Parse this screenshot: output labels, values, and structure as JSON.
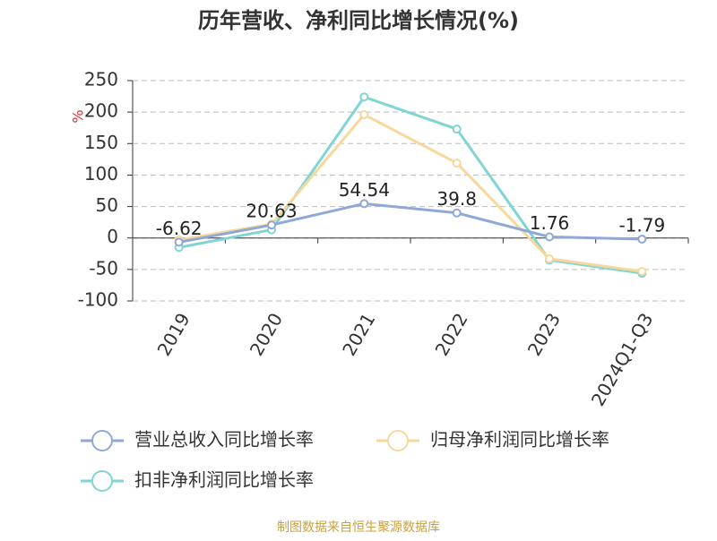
{
  "chart_data": {
    "type": "line",
    "title": "历年营收、净利同比增长情况(%)",
    "y_label": "%",
    "categories": [
      "2019",
      "2020",
      "2021",
      "2022",
      "2023",
      "2024Q1-Q3"
    ],
    "series": [
      {
        "name": "营业总收入同比增长率",
        "color": "#8fa8d8",
        "values": [
          -6.62,
          20.63,
          54.54,
          39.8,
          1.76,
          -1.79
        ],
        "show_labels": true
      },
      {
        "name": "归母净利润同比增长率",
        "color": "#f7d89c",
        "values": [
          -3,
          22,
          196,
          119,
          -33,
          -53
        ]
      },
      {
        "name": "扣非净利润同比增长率",
        "color": "#80d4d4",
        "values": [
          -15,
          13,
          224,
          173,
          -35,
          -56
        ]
      }
    ],
    "ylim": [
      -100,
      250
    ],
    "yticks": [
      -100,
      -50,
      0,
      50,
      100,
      150,
      200,
      250
    ],
    "grid": true,
    "source": "制图数据来自恒生聚源数据库"
  }
}
